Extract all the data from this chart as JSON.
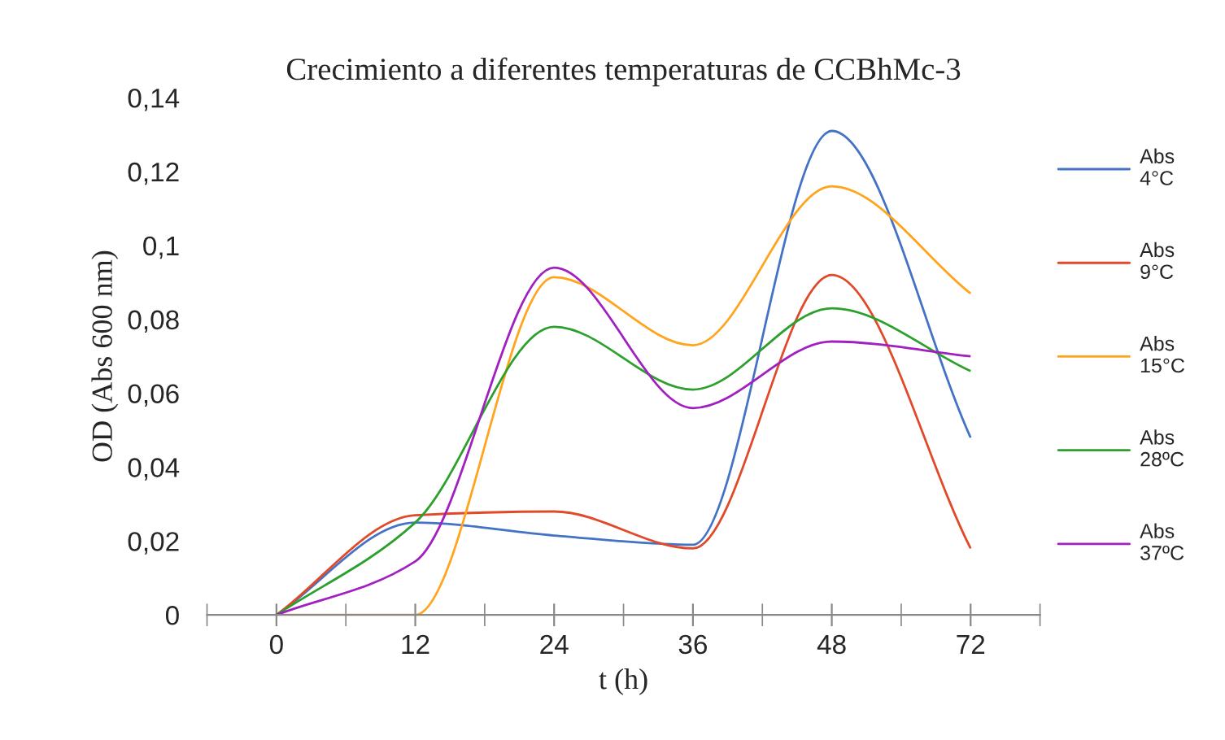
{
  "chart_data": {
    "type": "line",
    "title": "Crecimiento a diferentes temperaturas de CCBhMc-3",
    "xlabel": "t (h)",
    "ylabel": "OD (Abs 600 nm)",
    "categories": [
      "0",
      "12",
      "24",
      "36",
      "48",
      "72"
    ],
    "series": [
      {
        "name": "Abs\n4°C",
        "color": "#4472c4",
        "values": [
          0,
          0.025,
          0.0215,
          0.019,
          0.131,
          0.048
        ]
      },
      {
        "name": "Abs\n9°C",
        "color": "#e0492a",
        "values": [
          0,
          0.027,
          0.028,
          0.018,
          0.092,
          0.018
        ]
      },
      {
        "name": "Abs\n15°C",
        "color": "#ffa41c",
        "values": [
          0,
          0,
          0.0914,
          0.073,
          0.116,
          0.087
        ]
      },
      {
        "name": "Abs\n28ºC",
        "color": "#2ca02c",
        "values": [
          0,
          0.025,
          0.078,
          0.061,
          0.083,
          0.066
        ]
      },
      {
        "name": "Abs\n37ºC",
        "color": "#a020c0",
        "values": [
          0,
          0.0145,
          0.094,
          0.056,
          0.074,
          0.07
        ]
      }
    ],
    "ylim": [
      0,
      0.14
    ],
    "yticks": [
      0,
      {
        "value": 0.02,
        "label": "0,02"
      },
      {
        "value": 0.04,
        "label": "0,04"
      },
      {
        "value": 0.06,
        "label": "0,06"
      },
      {
        "value": 0.08,
        "label": "0,08"
      },
      {
        "value": 0.1,
        "label": "0,1"
      },
      {
        "value": 0.12,
        "label": "0,12"
      },
      {
        "value": 0.14,
        "label": "0,14"
      }
    ],
    "grid": false,
    "legend": "right",
    "marker": "none",
    "line_style": "solid"
  }
}
